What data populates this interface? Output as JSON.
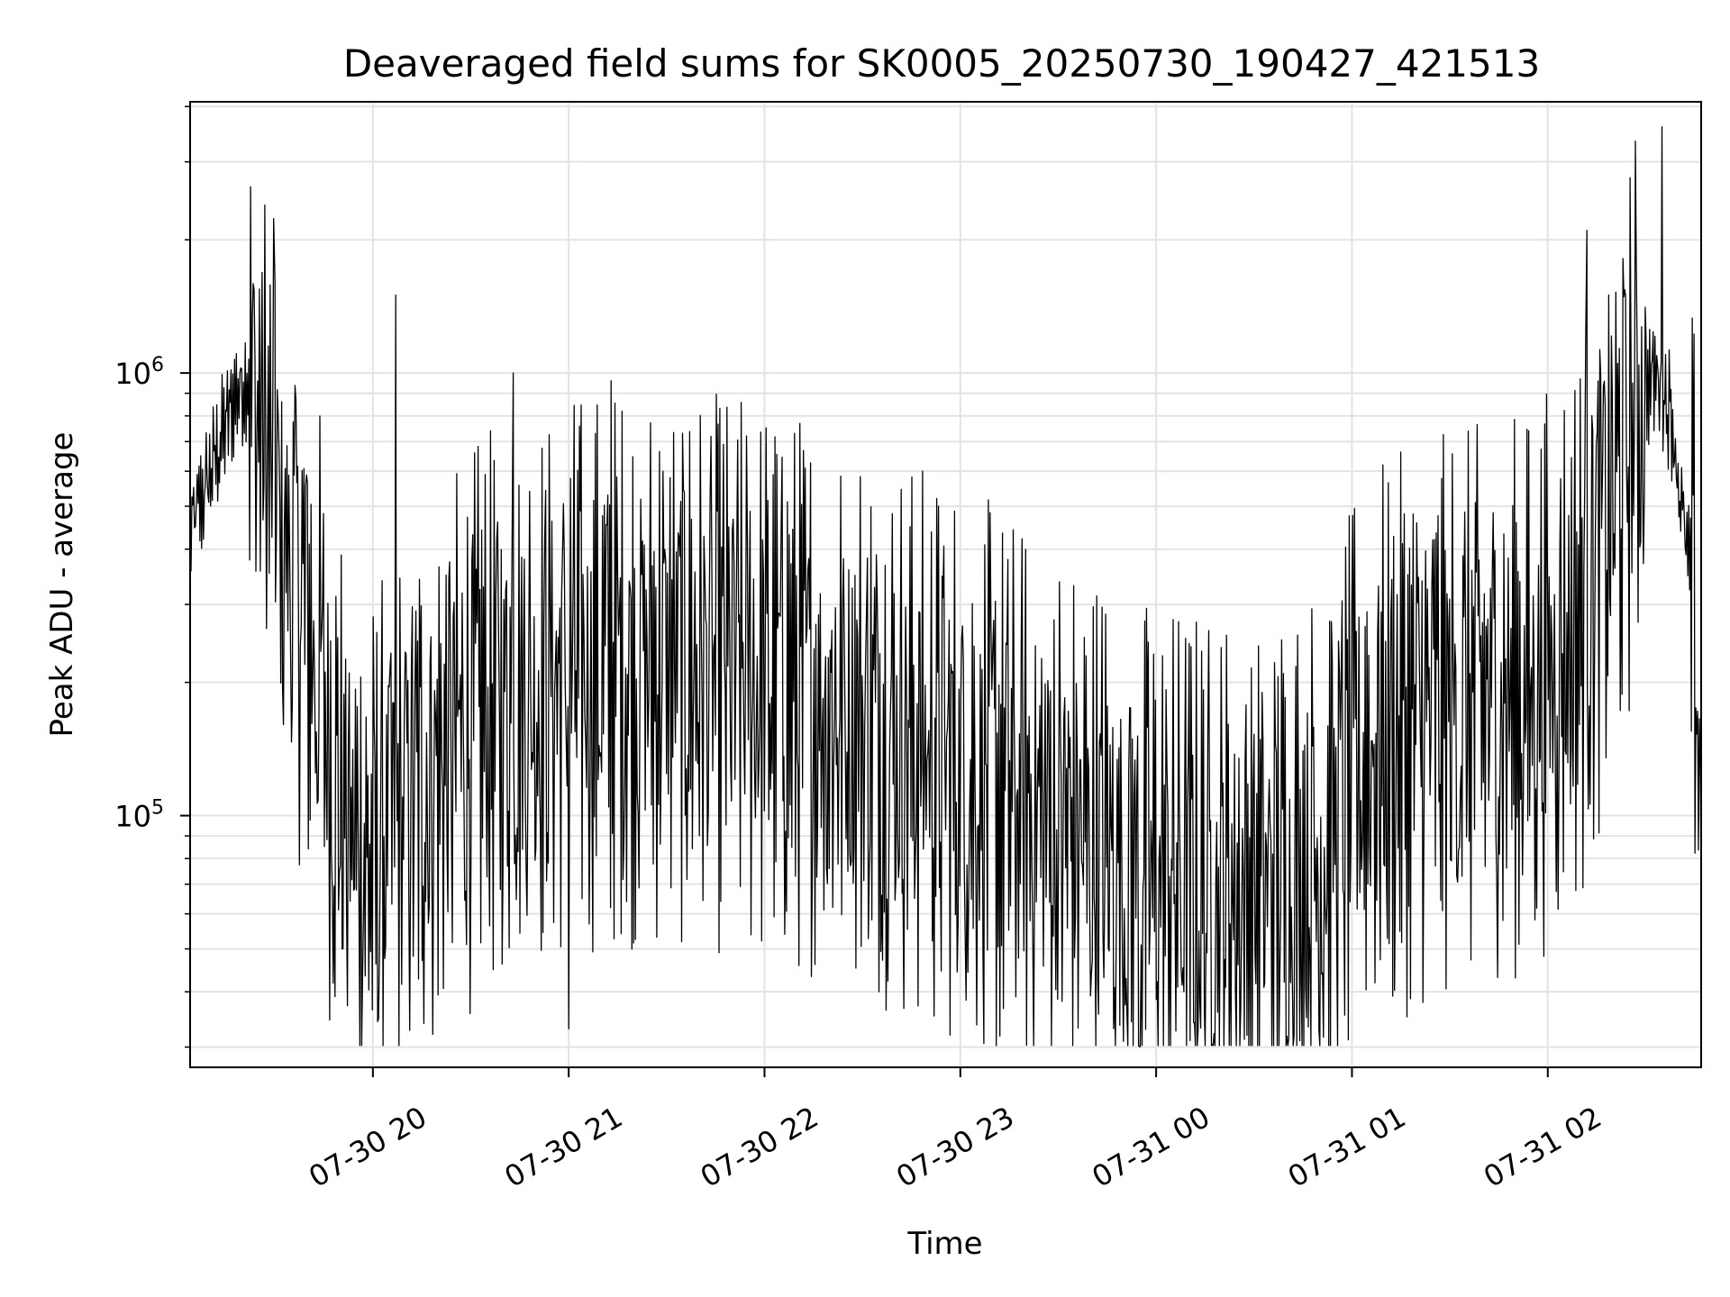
{
  "chart_data": {
    "type": "line",
    "title": "Deaveraged field sums for SK0005_20250730_190427_421513",
    "xlabel": "Time",
    "ylabel": "Peak ADU - average",
    "yscale": "log",
    "ylim": [
      27000,
      4100000
    ],
    "xlim": [
      "07-30 19:04",
      "07-31 02:47"
    ],
    "grid": true,
    "line_color": "#000000",
    "x_ticks": [
      "07-30 20",
      "07-30 21",
      "07-30 22",
      "07-30 23",
      "07-31 00",
      "07-31 01",
      "07-31 02"
    ],
    "y_ticks": [
      {
        "base": "10",
        "exp": "5",
        "value": 100000
      },
      {
        "base": "10",
        "exp": "6",
        "value": 1000000
      }
    ],
    "series": [
      {
        "trend": [
          {
            "x": "07-30 19:04",
            "y": 430000
          },
          {
            "x": "07-30 19:12",
            "y": 650000
          },
          {
            "x": "07-30 19:18",
            "y": 900000
          },
          {
            "x": "07-30 19:22",
            "y": 1000000
          },
          {
            "x": "07-30 19:26",
            "y": 750000
          },
          {
            "x": "07-30 19:32",
            "y": 400000
          },
          {
            "x": "07-30 19:38",
            "y": 330000
          },
          {
            "x": "07-30 19:46",
            "y": 160000
          },
          {
            "x": "07-30 19:52",
            "y": 90000
          },
          {
            "x": "07-30 20:00",
            "y": 75000
          },
          {
            "x": "07-30 20:15",
            "y": 120000
          },
          {
            "x": "07-30 20:35",
            "y": 170000
          },
          {
            "x": "07-30 21:00",
            "y": 210000
          },
          {
            "x": "07-30 21:30",
            "y": 220000
          },
          {
            "x": "07-30 22:00",
            "y": 200000
          },
          {
            "x": "07-30 22:30",
            "y": 170000
          },
          {
            "x": "07-30 23:00",
            "y": 130000
          },
          {
            "x": "07-30 23:30",
            "y": 95000
          },
          {
            "x": "07-31 00:00",
            "y": 70000
          },
          {
            "x": "07-31 00:30",
            "y": 65000
          },
          {
            "x": "07-31 00:50",
            "y": 80000
          },
          {
            "x": "07-31 01:05",
            "y": 140000
          },
          {
            "x": "07-31 01:30",
            "y": 170000
          },
          {
            "x": "07-31 01:55",
            "y": 190000
          },
          {
            "x": "07-31 02:10",
            "y": 280000
          },
          {
            "x": "07-31 02:20",
            "y": 500000
          },
          {
            "x": "07-31 02:28",
            "y": 900000
          },
          {
            "x": "07-31 02:34",
            "y": 1000000
          },
          {
            "x": "07-31 02:38",
            "y": 800000
          },
          {
            "x": "07-31 02:42",
            "y": 420000
          },
          {
            "x": "07-31 02:45",
            "y": 300000
          },
          {
            "x": "07-31 02:47",
            "y": 90000
          }
        ],
        "spikes": [
          {
            "x": "07-30 19:30",
            "y": 1600000
          },
          {
            "x": "07-30 20:07",
            "y": 1500000
          },
          {
            "x": "07-30 20:43",
            "y": 1000000
          },
          {
            "x": "07-30 21:13",
            "y": 960000
          },
          {
            "x": "07-31 02:12",
            "y": 2100000
          },
          {
            "x": "07-31 02:35",
            "y": 3600000
          }
        ],
        "dips": [
          {
            "x": "07-30 21:00",
            "y": 33000
          },
          {
            "x": "07-30 23:55",
            "y": 30000
          },
          {
            "x": "07-31 00:44",
            "y": 31000
          }
        ]
      }
    ]
  }
}
